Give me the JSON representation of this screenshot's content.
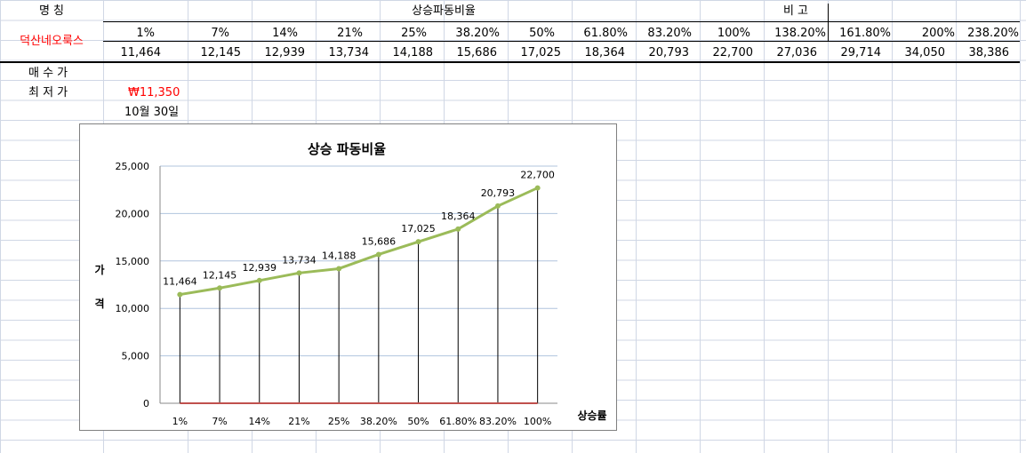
{
  "sheet": {
    "name_header": "명    칭",
    "title_header": "상승파동비율",
    "note_header": "비    고",
    "stock_name": "덕산네오룩스",
    "buy_price_label": "매 수 가",
    "low_price_label": "최 저 가",
    "low_price_value": "₩11,350",
    "date_value": "10월 30일",
    "ratio_labels": [
      "1%",
      "7%",
      "14%",
      "21%",
      "25%",
      "38.20%",
      "50%",
      "61.80%",
      "83.20%",
      "100%",
      "138.20%",
      "161.80%",
      "200%",
      "238.20%"
    ],
    "price_values": [
      "11,464",
      "12,145",
      "12,939",
      "13,734",
      "14,188",
      "15,686",
      "17,025",
      "18,364",
      "20,793",
      "22,700",
      "27,036",
      "29,714",
      "34,050",
      "38,386"
    ]
  },
  "colors": {
    "line": "#9bbb59",
    "baseline": "#c0504d",
    "red_text": "#ff0000"
  },
  "chart_data": {
    "type": "line",
    "title": "상승 파동비율",
    "xlabel": "상승률",
    "ylabel": "가격",
    "ylim": [
      0,
      25000
    ],
    "yticks": [
      "0",
      "5,000",
      "10,000",
      "15,000",
      "20,000",
      "25,000"
    ],
    "grid": true,
    "categories": [
      "1%",
      "7%",
      "14%",
      "21%",
      "25%",
      "38.20%",
      "50%",
      "61.80%",
      "83.20%",
      "100%"
    ],
    "series": [
      {
        "values": [
          11464,
          12145,
          12939,
          13734,
          14188,
          15686,
          17025,
          18364,
          20793,
          22700
        ],
        "labels": [
          "11,464",
          "12,145",
          "12,939",
          "13,734",
          "14,188",
          "15,686",
          "17,025",
          "18,364",
          "20,793",
          "22,700"
        ]
      },
      {
        "values": [
          0,
          0,
          0,
          0,
          0,
          0,
          0,
          0,
          0,
          0
        ]
      }
    ]
  }
}
